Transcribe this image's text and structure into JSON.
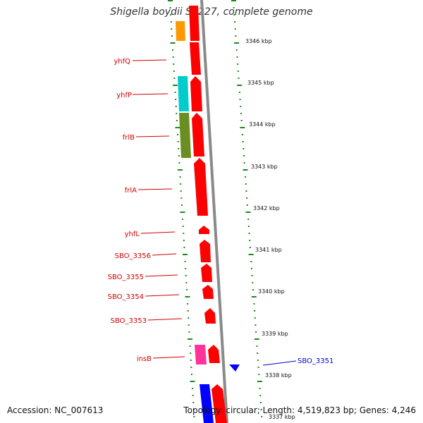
{
  "title": "Shigella boydii Sb227, complete genome",
  "accession": "Accession: NC_007613",
  "summary": "Topology: circular; Length: 4,519,823 bp; Genes: 4,246",
  "colors": {
    "red": "#ff0000",
    "orange": "#ff9900",
    "cyan": "#00cccc",
    "olive": "#6b8e23",
    "magenta": "#ff3399",
    "blue": "#0000ff",
    "backbone": "#888888",
    "tick": "#1a8a1a"
  },
  "scale_labels": [
    "3346 kbp",
    "3345 kbp",
    "3344 kbp",
    "3343 kbp",
    "3342 kbp",
    "3341 kbp",
    "3340 kbp",
    "3339 kbp",
    "3338 kbp",
    "3337 kbp"
  ],
  "gene_labels": [
    {
      "name": "yhfQ",
      "color": "red"
    },
    {
      "name": "yhfP",
      "color": "red"
    },
    {
      "name": "frlB",
      "color": "red"
    },
    {
      "name": "frlA",
      "color": "red"
    },
    {
      "name": "yhfL",
      "color": "red"
    },
    {
      "name": "SBO_3356",
      "color": "red"
    },
    {
      "name": "SBO_3355",
      "color": "red"
    },
    {
      "name": "SBO_3354",
      "color": "red"
    },
    {
      "name": "SBO_3353",
      "color": "red"
    },
    {
      "name": "insB",
      "color": "red"
    },
    {
      "name": "SBO_3351",
      "color": "blue"
    }
  ]
}
